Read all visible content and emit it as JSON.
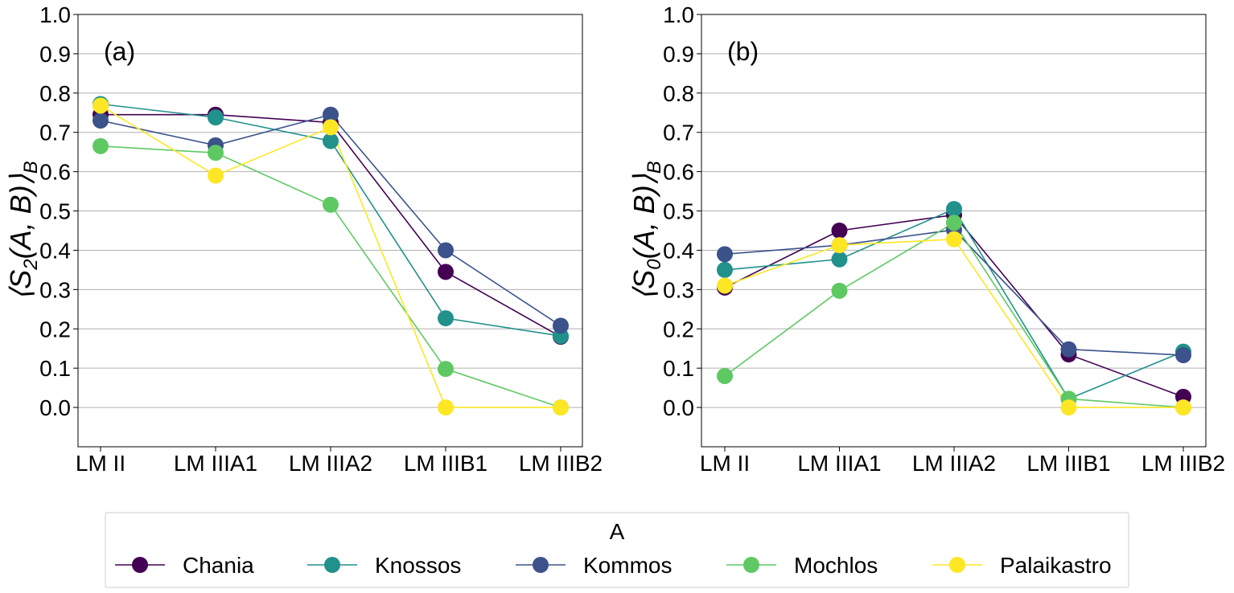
{
  "chart_data": [
    {
      "type": "line",
      "panel_label": "(a)",
      "ylabel_main": "⟨S",
      "ylabel_sub": "2",
      "ylabel_rest": "(A, B)⟩",
      "ylabel_sub2": "B",
      "categories": [
        "LM II",
        "LM IIIA1",
        "LM IIIA2",
        "LM IIIB1",
        "LM IIIB2"
      ],
      "ylim": [
        -0.1,
        1.0
      ],
      "yticks": [
        "0.0",
        "0.1",
        "0.2",
        "0.3",
        "0.4",
        "0.5",
        "0.6",
        "0.7",
        "0.8",
        "0.9",
        "1.0"
      ],
      "grid": "horizontal",
      "series": [
        {
          "name": "Chania",
          "color": "#440154",
          "values": [
            0.745,
            0.745,
            0.725,
            0.345,
            0.18
          ]
        },
        {
          "name": "Knossos",
          "color": "#21918c",
          "values": [
            0.772,
            0.738,
            0.678,
            0.227,
            0.182
          ]
        },
        {
          "name": "Kommos",
          "color": "#3b528b",
          "values": [
            0.73,
            0.667,
            0.745,
            0.4,
            0.208
          ]
        },
        {
          "name": "Mochlos",
          "color": "#5ec962",
          "values": [
            0.665,
            0.648,
            0.516,
            0.098,
            0.0
          ]
        },
        {
          "name": "Palaikastro",
          "color": "#fde725",
          "values": [
            0.768,
            0.59,
            0.713,
            0.0,
            0.0
          ]
        }
      ]
    },
    {
      "type": "line",
      "panel_label": "(b)",
      "ylabel_main": "⟨S",
      "ylabel_sub": "0",
      "ylabel_rest": "(A, B)⟩",
      "ylabel_sub2": "B",
      "categories": [
        "LM II",
        "LM IIIA1",
        "LM IIIA2",
        "LM IIIB1",
        "LM IIIB2"
      ],
      "ylim": [
        -0.1,
        1.0
      ],
      "yticks": [
        "0.0",
        "0.1",
        "0.2",
        "0.3",
        "0.4",
        "0.5",
        "0.6",
        "0.7",
        "0.8",
        "0.9",
        "1.0"
      ],
      "grid": "horizontal",
      "series": [
        {
          "name": "Chania",
          "color": "#440154",
          "values": [
            0.305,
            0.45,
            0.49,
            0.135,
            0.027
          ]
        },
        {
          "name": "Knossos",
          "color": "#21918c",
          "values": [
            0.35,
            0.377,
            0.505,
            0.022,
            0.142
          ]
        },
        {
          "name": "Kommos",
          "color": "#3b528b",
          "values": [
            0.39,
            0.413,
            0.452,
            0.148,
            0.133
          ]
        },
        {
          "name": "Mochlos",
          "color": "#5ec962",
          "values": [
            0.08,
            0.297,
            0.47,
            0.022,
            0.0
          ]
        },
        {
          "name": "Palaikastro",
          "color": "#fde725",
          "values": [
            0.31,
            0.413,
            0.428,
            0.0,
            0.0
          ]
        }
      ]
    }
  ],
  "legend": {
    "title": "A",
    "placement": "bottom",
    "entries": [
      {
        "name": "Chania",
        "color": "#440154"
      },
      {
        "name": "Knossos",
        "color": "#21918c"
      },
      {
        "name": "Kommos",
        "color": "#3b528b"
      },
      {
        "name": "Mochlos",
        "color": "#5ec962"
      },
      {
        "name": "Palaikastro",
        "color": "#fde725"
      }
    ]
  }
}
